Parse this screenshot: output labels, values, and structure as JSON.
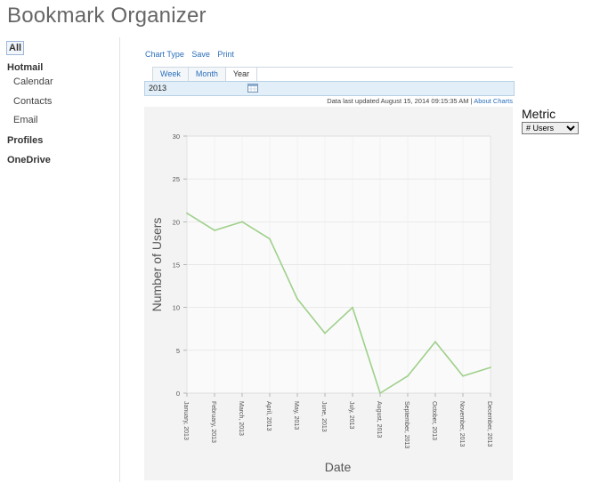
{
  "app": {
    "title": "Bookmark Organizer"
  },
  "sidebar": {
    "all_label": "All",
    "items": [
      {
        "label": "Hotmail",
        "type": "group"
      },
      {
        "label": "Calendar",
        "type": "sub"
      },
      {
        "label": "Contacts",
        "type": "sub"
      },
      {
        "label": "Email",
        "type": "sub"
      },
      {
        "label": "Profiles",
        "type": "group"
      },
      {
        "label": "OneDrive",
        "type": "group"
      }
    ]
  },
  "toolbar": {
    "chart_type": "Chart Type",
    "save": "Save",
    "print": "Print"
  },
  "tabs": [
    {
      "label": "Week",
      "active": false
    },
    {
      "label": "Month",
      "active": false
    },
    {
      "label": "Year",
      "active": true
    }
  ],
  "period": {
    "value": "2013",
    "icon": "calendar-icon"
  },
  "status": {
    "updated_text": "Data last updated August 15, 2014 09:15:35 AM |",
    "about_link": "About Charts"
  },
  "metric": {
    "label": "Metric",
    "selected": "# Users"
  },
  "chart_data": {
    "type": "line",
    "title": "",
    "xlabel": "Date",
    "ylabel": "Number of Users",
    "categories": [
      "January, 2013",
      "February, 2013",
      "March, 2013",
      "April, 2013",
      "May, 2013",
      "June, 2013",
      "July, 2013",
      "August, 2013",
      "September, 2013",
      "October, 2013",
      "November, 2013",
      "December, 2013"
    ],
    "series": [
      {
        "values": [
          21,
          19,
          20,
          18,
          11,
          7,
          10,
          0,
          2,
          6,
          2,
          3
        ],
        "color": "#9ed08a"
      }
    ],
    "ylim": [
      0,
      30
    ],
    "yticks": [
      "0",
      "5",
      "10",
      "15",
      "20",
      "25",
      "30"
    ],
    "grid": true,
    "legend": "none"
  }
}
